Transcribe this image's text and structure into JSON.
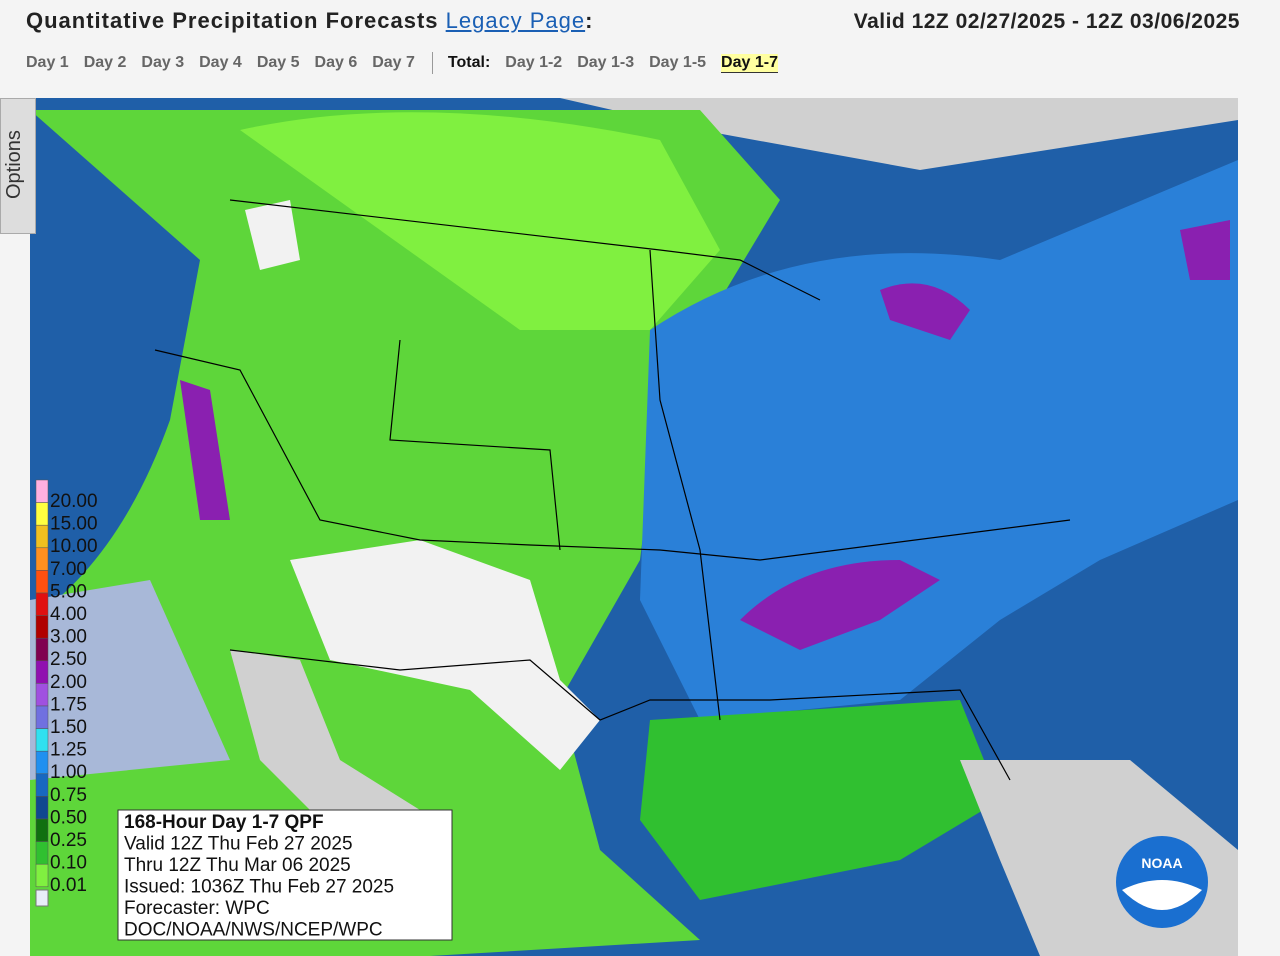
{
  "header": {
    "title": "Quantitative Precipitation Forecasts",
    "link": "Legacy Page",
    "colon": ":",
    "valid": "Valid 12Z 02/27/2025 - 12Z 03/06/2025"
  },
  "tabs": [
    "Day 1",
    "Day 2",
    "Day 3",
    "Day 4",
    "Day 5",
    "Day 6",
    "Day 7"
  ],
  "total_label": "Total:",
  "total_tabs": [
    "Day 1-2",
    "Day 1-3",
    "Day 1-5",
    "Day 1-7"
  ],
  "selected_tab": "Day 1-7",
  "options": "Options",
  "legend": {
    "labels": [
      "20.00",
      "15.00",
      "10.00",
      "7.00",
      "5.00",
      "4.00",
      "3.00",
      "2.50",
      "2.00",
      "1.75",
      "1.50",
      "1.25",
      "1.00",
      "0.75",
      "0.50",
      "0.25",
      "0.10",
      "0.01"
    ],
    "colors": [
      "#ffb0e0",
      "#ffff40",
      "#f0c020",
      "#ff9020",
      "#ff5010",
      "#e01010",
      "#b00000",
      "#800050",
      "#9010b0",
      "#a050e0",
      "#7070e0",
      "#30e0f0",
      "#2090f0",
      "#1868c0",
      "#104890",
      "#107010",
      "#30c030",
      "#80f040"
    ]
  },
  "info_box": {
    "lines": [
      "168-Hour Day 1-7 QPF",
      "Valid 12Z Thu Feb 27 2025",
      "Thru 12Z Thu Mar 06 2025",
      "Issued: 1036Z Thu Feb 27 2025",
      "Forecaster: WPC",
      "DOC/NOAA/NWS/NCEP/WPC"
    ]
  },
  "logo": "NOAA"
}
